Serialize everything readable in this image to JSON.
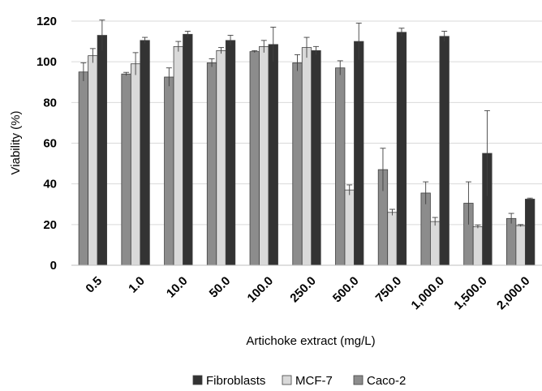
{
  "chart_data": {
    "type": "bar",
    "title": "",
    "xlabel": "Artichoke extract (mg/L)",
    "ylabel": "Viability (%)",
    "ylim": [
      0,
      120
    ],
    "yticks": [
      0,
      20,
      40,
      60,
      80,
      100,
      120
    ],
    "grid": true,
    "legend_position": "bottom",
    "categories": [
      "0.5",
      "1.0",
      "10.0",
      "50.0",
      "100.0",
      "250.0",
      "500.0",
      "750.0",
      "1,000.0",
      "1,500.0",
      "2,000.0"
    ],
    "series": [
      {
        "name": "Caco-2",
        "color": "#8c8c8c",
        "values": [
          95,
          94,
          92.5,
          99.5,
          105,
          99.5,
          97,
          47,
          35.5,
          30.5,
          23
        ],
        "errors": [
          4.5,
          0.8,
          4.5,
          2,
          0.5,
          4,
          3.5,
          10.5,
          5.5,
          10.5,
          2.5
        ]
      },
      {
        "name": "MCF-7",
        "color": "#d9d9d9",
        "values": [
          103,
          99,
          107.5,
          105.5,
          107.5,
          107,
          37,
          26,
          21.5,
          19,
          19.5
        ],
        "errors": [
          3.5,
          5.5,
          2.5,
          1.5,
          3,
          5,
          2.5,
          1.5,
          2,
          0.8,
          0.5
        ]
      },
      {
        "name": "Fibroblasts",
        "color": "#333333",
        "values": [
          113,
          110.5,
          113.5,
          110.5,
          108.5,
          105.5,
          110,
          114.5,
          112.5,
          55,
          32.5
        ],
        "errors": [
          7.5,
          1.5,
          1.5,
          2.5,
          8.5,
          2,
          9,
          2,
          2.5,
          21,
          0.5
        ]
      }
    ],
    "legend_order": [
      "Fibroblasts",
      "MCF-7",
      "Caco-2"
    ]
  }
}
